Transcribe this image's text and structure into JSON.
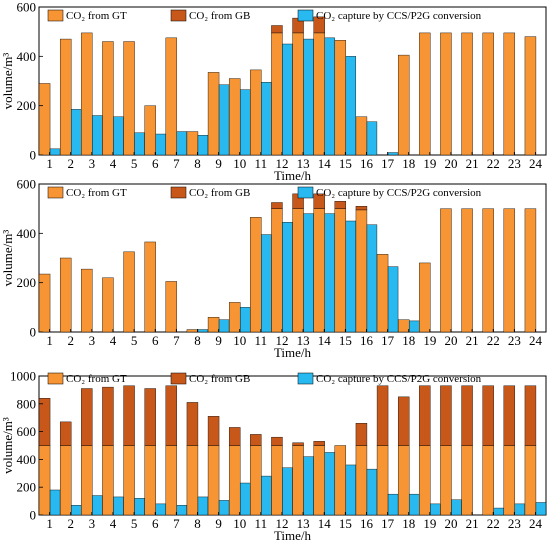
{
  "colors": {
    "gt": "#F79433",
    "gb": "#C8581A",
    "ccs": "#27B9EF",
    "axis": "#000000"
  },
  "chart_data": [
    {
      "type": "bar",
      "xlabel": "Time/h",
      "ylabel": "volume/m³",
      "ylim": [
        0,
        600
      ],
      "yticks": [
        0,
        200,
        400,
        600
      ],
      "categories": [
        "1",
        "2",
        "3",
        "4",
        "5",
        "6",
        "7",
        "8",
        "9",
        "10",
        "11",
        "12",
        "13",
        "14",
        "15",
        "16",
        "17",
        "18",
        "19",
        "20",
        "21",
        "22",
        "23",
        "24"
      ],
      "legend": [
        "CO₂ from GT",
        "CO₂ from GB",
        "CO₂ capture by CCS/P2G conversion"
      ],
      "series": [
        {
          "name": "CO₂ from GT",
          "values": [
            290,
            470,
            495,
            460,
            460,
            200,
            475,
            95,
            335,
            310,
            345,
            495,
            495,
            495,
            465,
            155,
            0,
            405,
            495,
            495,
            495,
            495,
            495,
            480
          ]
        },
        {
          "name": "CO₂ from GB",
          "values": [
            0,
            0,
            0,
            0,
            0,
            0,
            0,
            0,
            0,
            0,
            0,
            30,
            60,
            65,
            0,
            0,
            0,
            0,
            0,
            0,
            0,
            0,
            0,
            0
          ]
        },
        {
          "name": "CO₂ capture by CCS/P2G conversion",
          "values": [
            25,
            185,
            160,
            155,
            90,
            85,
            95,
            80,
            285,
            265,
            295,
            450,
            470,
            475,
            400,
            135,
            10,
            0,
            0,
            0,
            0,
            0,
            0,
            0
          ]
        }
      ]
    },
    {
      "type": "bar",
      "xlabel": "Time/h",
      "ylabel": "volume/m³",
      "ylim": [
        0,
        600
      ],
      "yticks": [
        0,
        200,
        400,
        600
      ],
      "categories": [
        "1",
        "2",
        "3",
        "4",
        "5",
        "6",
        "7",
        "8",
        "9",
        "10",
        "11",
        "12",
        "13",
        "14",
        "15",
        "16",
        "17",
        "18",
        "19",
        "20",
        "21",
        "22",
        "23",
        "24"
      ],
      "legend": [
        "CO₂ from GT",
        "CO₂ from GB",
        "CO₂ capture by CCS/P2G conversion"
      ],
      "series": [
        {
          "name": "CO₂ from GT",
          "values": [
            235,
            300,
            255,
            220,
            325,
            365,
            205,
            10,
            60,
            120,
            465,
            500,
            500,
            500,
            500,
            495,
            315,
            50,
            280,
            500,
            500,
            500,
            500,
            500
          ]
        },
        {
          "name": "CO₂ from GB",
          "values": [
            0,
            0,
            0,
            0,
            0,
            0,
            0,
            0,
            0,
            0,
            0,
            25,
            60,
            60,
            30,
            15,
            0,
            0,
            0,
            0,
            0,
            0,
            0,
            0
          ]
        },
        {
          "name": "CO₂ capture by CCS/P2G conversion",
          "values": [
            0,
            0,
            0,
            0,
            0,
            0,
            0,
            10,
            50,
            100,
            395,
            445,
            480,
            480,
            450,
            435,
            265,
            45,
            0,
            0,
            0,
            0,
            0,
            0
          ]
        }
      ]
    },
    {
      "type": "bar",
      "xlabel": "Time/h",
      "ylabel": "volume/m³",
      "ylim": [
        0,
        1000
      ],
      "yticks": [
        0,
        200,
        400,
        600,
        800,
        1000
      ],
      "categories": [
        "1",
        "2",
        "3",
        "4",
        "5",
        "6",
        "7",
        "8",
        "9",
        "10",
        "11",
        "12",
        "13",
        "14",
        "15",
        "16",
        "17",
        "18",
        "19",
        "20",
        "21",
        "22",
        "23",
        "24"
      ],
      "legend": [
        "CO₂ from GT",
        "CO₂ from GB",
        "CO₂ capture by CCS/P2G conversion"
      ],
      "series": [
        {
          "name": "CO₂ from GT",
          "values": [
            500,
            500,
            500,
            500,
            500,
            500,
            500,
            500,
            500,
            500,
            500,
            500,
            500,
            500,
            500,
            500,
            500,
            500,
            500,
            500,
            500,
            500,
            500,
            500
          ]
        },
        {
          "name": "CO₂ from GB",
          "values": [
            340,
            170,
            410,
            420,
            430,
            410,
            430,
            310,
            210,
            130,
            80,
            60,
            20,
            30,
            0,
            160,
            430,
            350,
            430,
            430,
            430,
            430,
            430,
            430
          ]
        },
        {
          "name": "CO₂ capture by CCS/P2G conversion",
          "values": [
            180,
            70,
            140,
            130,
            120,
            80,
            70,
            130,
            105,
            230,
            280,
            340,
            420,
            450,
            360,
            330,
            150,
            150,
            80,
            110,
            0,
            50,
            80,
            90
          ]
        }
      ]
    }
  ]
}
